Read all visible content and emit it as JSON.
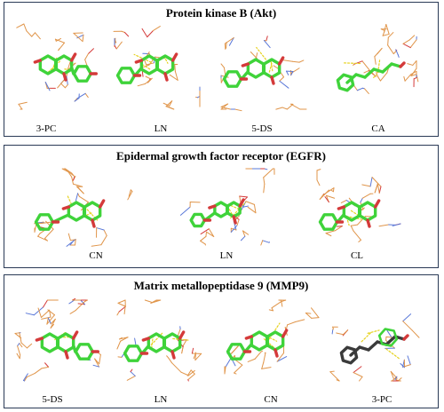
{
  "colors": {
    "frame": "#2a3a56",
    "residue": "#e0954a",
    "nitrogen": "#5a78d8",
    "oxygen": "#d43a3a",
    "ligand": "#3fd33a",
    "hbond": "#e6d21e",
    "dark": "#3a3a3a"
  },
  "panels": [
    {
      "title": "Protein kinase B (Akt)",
      "ligands": [
        "3-PC",
        "LN",
        "5-DS",
        "CA"
      ]
    },
    {
      "title": "Epidermal growth factor receptor (EGFR)",
      "ligands": [
        "CN",
        "LN",
        "CL"
      ]
    },
    {
      "title": "Matrix metallopeptidase 9 (MMP9)",
      "ligands": [
        "5-DS",
        "LN",
        "CN",
        "3-PC"
      ]
    }
  ]
}
